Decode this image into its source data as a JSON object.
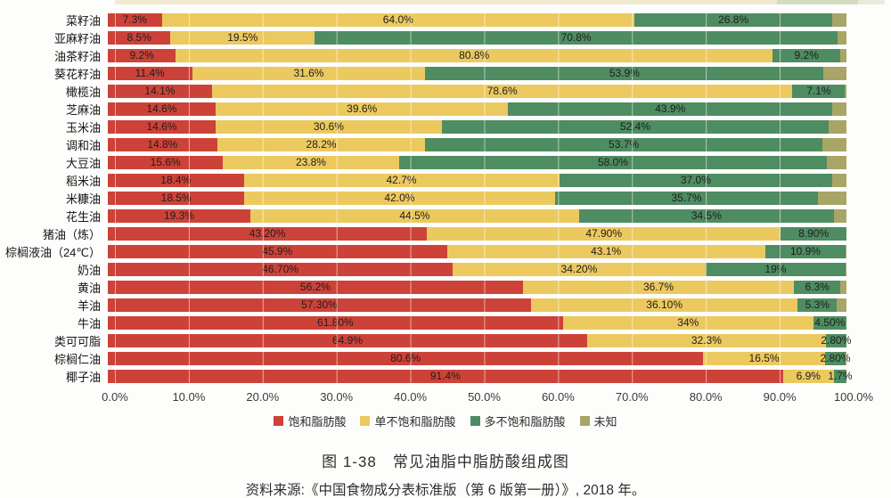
{
  "figure": {
    "caption": "图 1-38　常见油脂中脂肪酸组成图",
    "source": "资料来源:《中国食物成分表标准版（第 6 版第一册）》, 2018 年。"
  },
  "chart_data": {
    "type": "bar",
    "orientation": "horizontal",
    "stacked": true,
    "xlim": [
      0,
      100
    ],
    "grid": "vertical-10pct",
    "legend_position": "bottom",
    "x_ticks": [
      "0.0%",
      "10.0%",
      "20.0%",
      "30.0%",
      "40.0%",
      "50.0%",
      "60.0%",
      "70.0%",
      "80.0%",
      "90.0%",
      "100.0%"
    ],
    "categories": [
      "菜籽油",
      "亚麻籽油",
      "油茶籽油",
      "葵花籽油",
      "橄榄油",
      "芝麻油",
      "玉米油",
      "调和油",
      "大豆油",
      "稻米油",
      "米糠油",
      "花生油",
      "猪油（炼）",
      "棕榈液油（24℃）",
      "奶油",
      "黄油",
      "羊油",
      "牛油",
      "类可可脂",
      "棕榈仁油",
      "椰子油"
    ],
    "series": [
      {
        "name": "饱和脂肪酸",
        "color": "#cd4238",
        "values": [
          7.3,
          8.5,
          9.2,
          11.4,
          14.1,
          14.6,
          14.6,
          14.8,
          15.6,
          18.4,
          18.5,
          19.3,
          43.2,
          45.9,
          46.7,
          56.2,
          57.3,
          61.8,
          64.9,
          80.6,
          91.4
        ],
        "labels": [
          "7.3%",
          "8.5%",
          "9.2%",
          "11.4%",
          "14.1%",
          "14.6%",
          "14.6%",
          "14.8%",
          "15.6%",
          "18.4%",
          "18.5%",
          "19.3%",
          "43.20%",
          "45.9%",
          "46.70%",
          "56.2%",
          "57.30%",
          "61.80%",
          "64.9%",
          "80.6%",
          "91.4%"
        ]
      },
      {
        "name": "单不饱和脂肪酸",
        "color": "#ecc95f",
        "values": [
          64.0,
          19.5,
          80.8,
          31.6,
          78.6,
          39.6,
          30.6,
          28.2,
          23.8,
          42.7,
          42.0,
          44.5,
          47.9,
          43.1,
          34.2,
          36.7,
          36.1,
          34.0,
          32.3,
          16.5,
          6.9
        ],
        "labels": [
          "64.0%",
          "19.5%",
          "80.8%",
          "31.6%",
          "78.6%",
          "39.6%",
          "30.6%",
          "28.2%",
          "23.8%",
          "42.7%",
          "42.0%",
          "44.5%",
          "47.90%",
          "43.1%",
          "34.20%",
          "36.7%",
          "36.10%",
          "34%",
          "32.3%",
          "16.5%",
          "6.9%"
        ]
      },
      {
        "name": "多不饱和脂肪酸",
        "color": "#4e8c61",
        "values": [
          26.8,
          70.8,
          9.2,
          53.9,
          7.1,
          43.9,
          52.4,
          53.7,
          58.0,
          37.0,
          35.7,
          34.5,
          8.9,
          10.9,
          19.0,
          6.3,
          5.3,
          4.5,
          2.8,
          2.8,
          1.7
        ],
        "labels": [
          "26.8%",
          "70.8%",
          "9.2%",
          "53.9%",
          "7.1%",
          "43.9%",
          "52.4%",
          "53.7%",
          "58.0%",
          "37.0%",
          "35.7%",
          "34.5%",
          "8.90%",
          "10.9%",
          "19%",
          "6.3%",
          "5.3%",
          "4.50%",
          "2.80%",
          "2.80%",
          "1.7%"
        ]
      },
      {
        "name": "未知",
        "color": "#a8a566",
        "values": [
          1.9,
          1.2,
          0.8,
          3.1,
          0.2,
          1.9,
          2.4,
          3.3,
          2.6,
          1.9,
          3.8,
          1.7,
          0.0,
          0.1,
          0.1,
          0.8,
          1.3,
          0.0,
          0.0,
          0.1,
          0.0
        ],
        "labels": [
          "",
          "",
          "",
          "",
          "",
          "",
          "",
          "",
          "",
          "",
          "",
          "",
          "",
          "",
          "",
          "",
          "",
          "",
          "",
          "",
          ""
        ]
      }
    ]
  }
}
